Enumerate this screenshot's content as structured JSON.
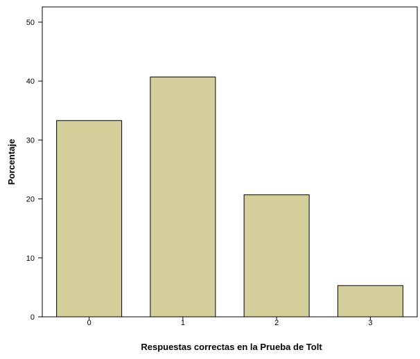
{
  "chart_data": {
    "type": "bar",
    "categories": [
      "0",
      "1",
      "2",
      "3"
    ],
    "values": [
      33.3,
      40.7,
      20.7,
      5.3
    ],
    "title": "",
    "xlabel": "Respuestas correctas en la Prueba de Tolt",
    "ylabel": "Porcentaje",
    "ylim": [
      0,
      50
    ],
    "yticks": [
      0,
      10,
      20,
      30,
      40,
      50
    ],
    "grid": false,
    "legend": "none",
    "colors": {
      "bar_fill": "#d4cf9a",
      "bar_stroke": "#000000",
      "axis": "#000000",
      "background": "#ffffff"
    }
  }
}
